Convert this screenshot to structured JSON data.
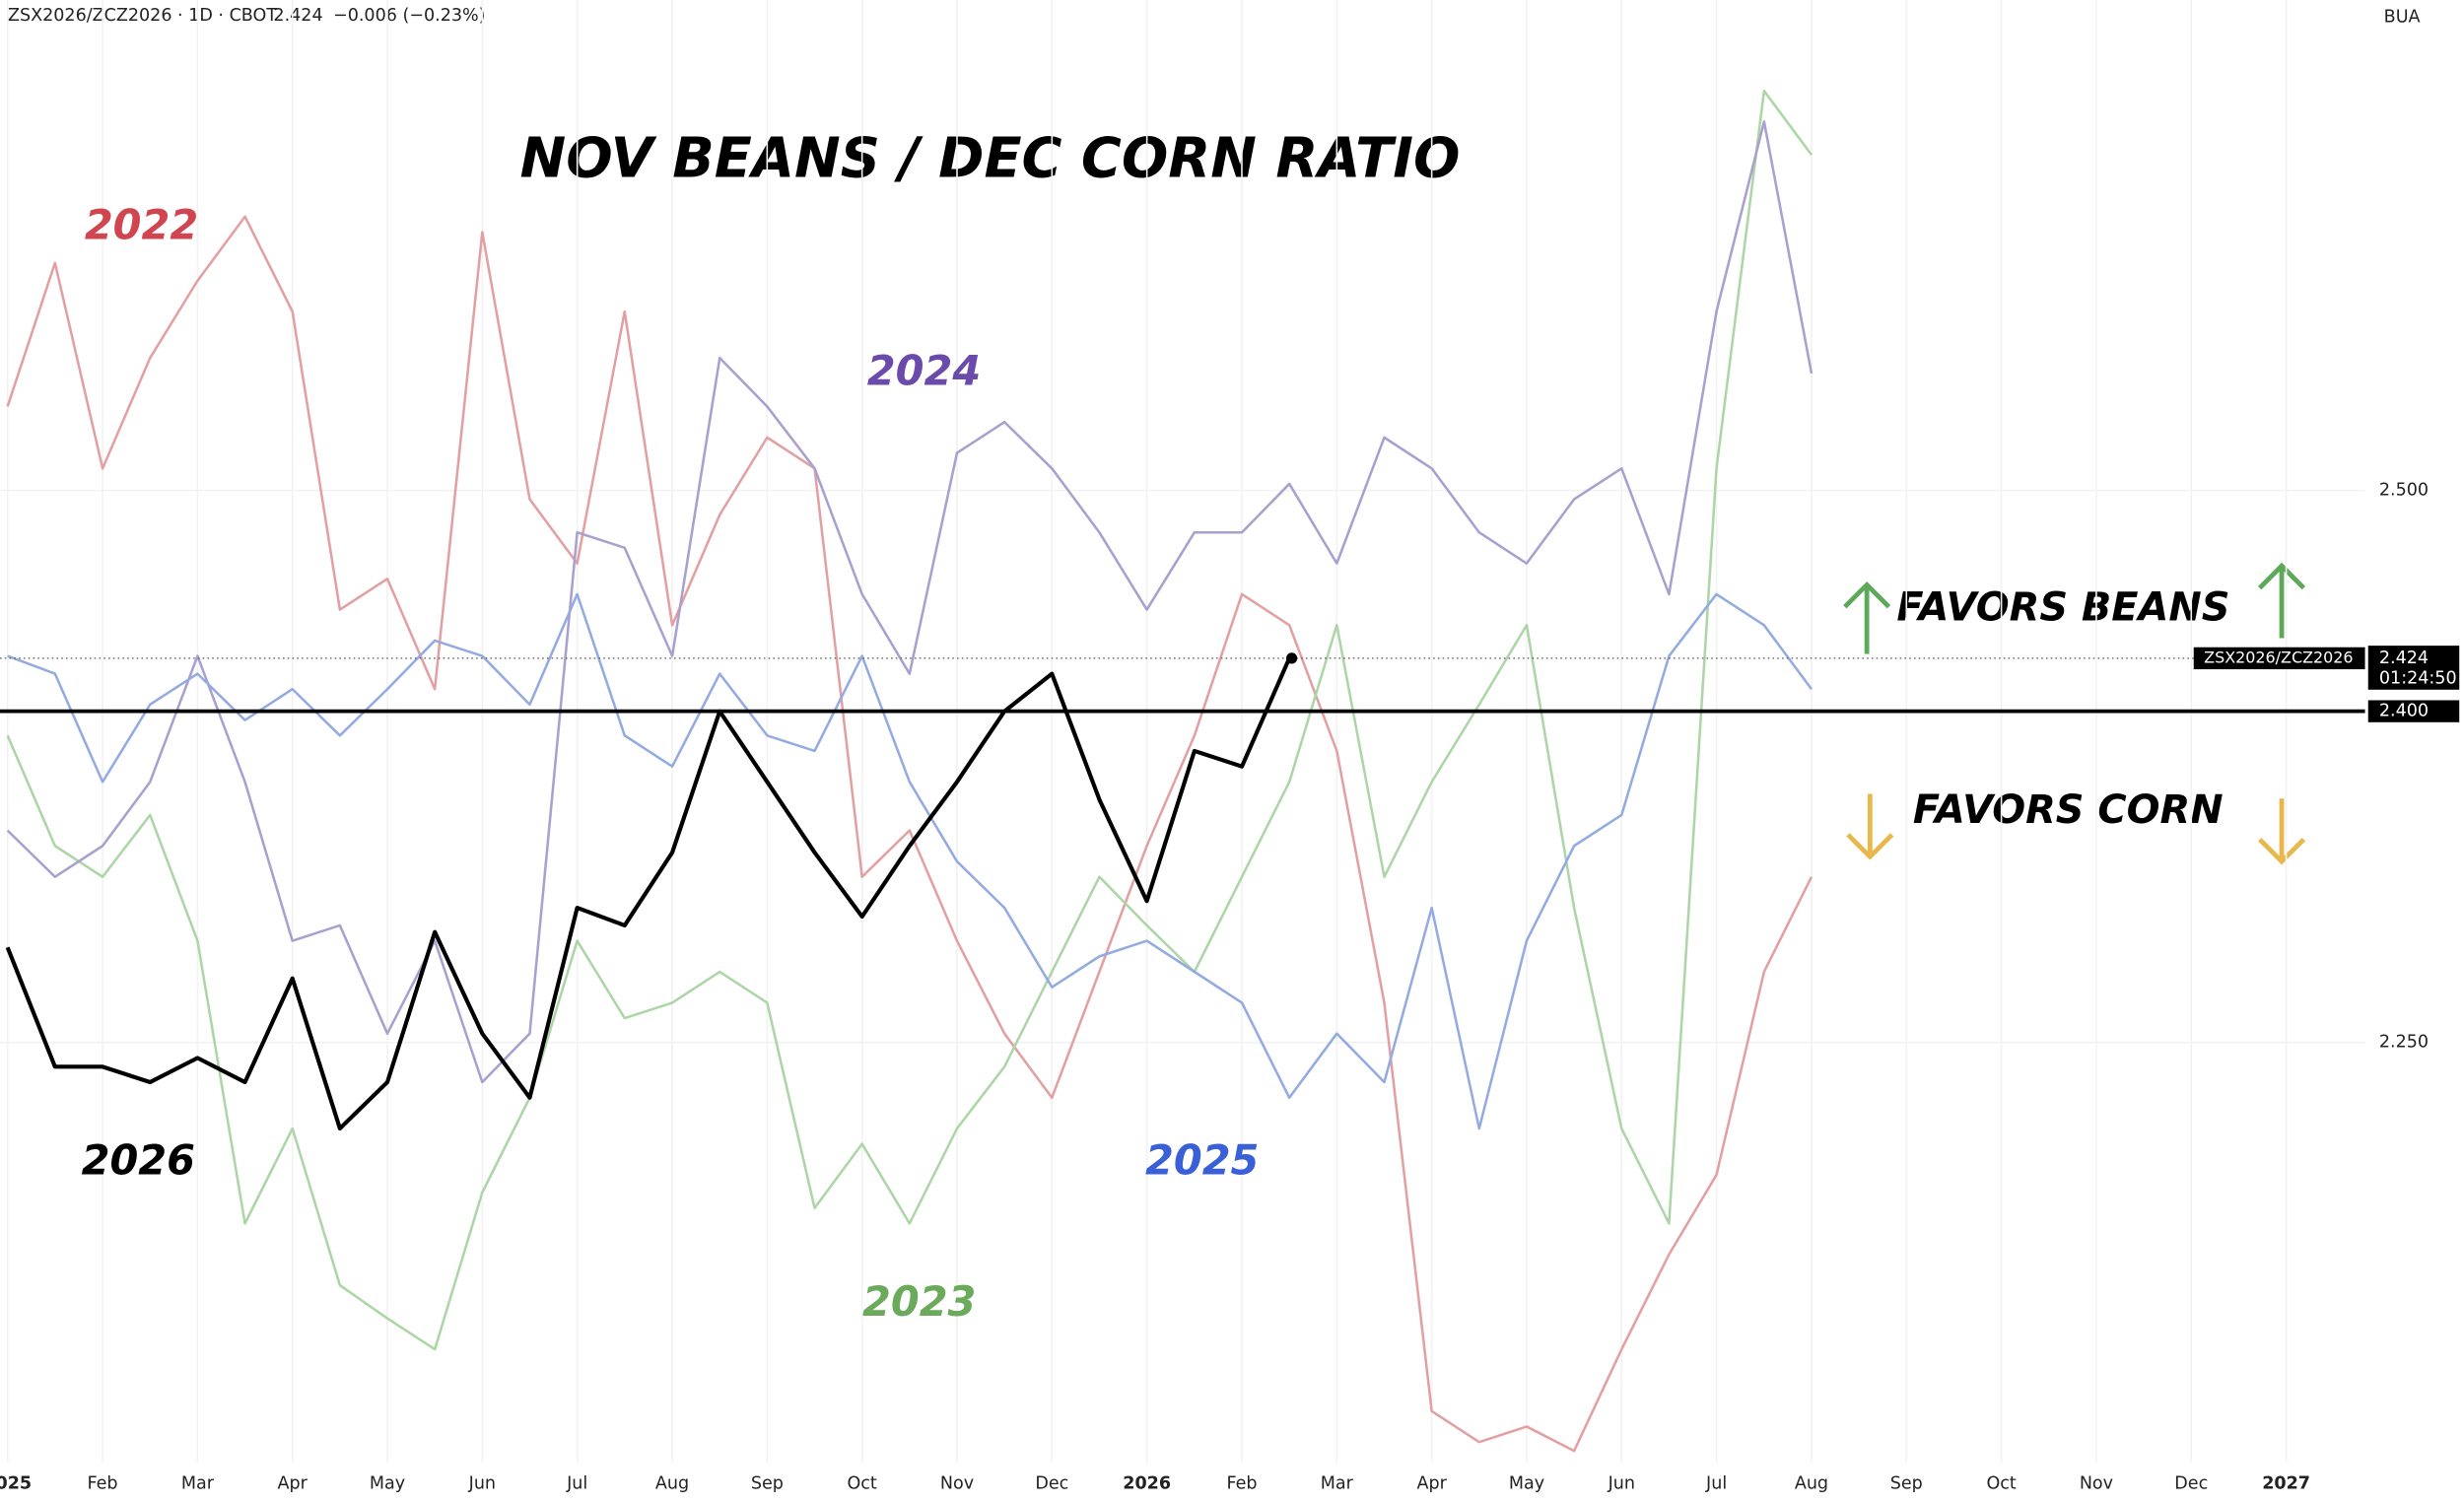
{
  "chart_data": {
    "type": "line",
    "title": "NOV BEANS / DEC CORN RATIO",
    "header": {
      "symbol": "ZSX2026/ZCZ2026 · 1D · CBOT",
      "last": "2.424",
      "change": "−0.006 (−0.23%)"
    },
    "corner_text": "BUA",
    "annotations": [
      "FAVORS BEANS",
      "FAVORS CORN"
    ],
    "hline": {
      "value": 2.4,
      "label": "2.400"
    },
    "last_price": {
      "symbol": "ZSX2026/ZCZ2026",
      "value": 2.424,
      "countdown": "01:24:50"
    },
    "grid": true,
    "xlim": [
      -0.08,
      24.83
    ],
    "xticks": [
      {
        "value": 0,
        "label": "2025"
      },
      {
        "value": 1,
        "label": "Feb"
      },
      {
        "value": 2,
        "label": "Mar"
      },
      {
        "value": 3,
        "label": "Apr"
      },
      {
        "value": 4,
        "label": "May"
      },
      {
        "value": 5,
        "label": "Jun"
      },
      {
        "value": 6,
        "label": "Jul"
      },
      {
        "value": 7,
        "label": "Aug"
      },
      {
        "value": 8,
        "label": "Sep"
      },
      {
        "value": 9,
        "label": "Oct"
      },
      {
        "value": 10,
        "label": "Nov"
      },
      {
        "value": 11,
        "label": "Dec"
      },
      {
        "value": 12,
        "label": "2026"
      },
      {
        "value": 13,
        "label": "Feb"
      },
      {
        "value": 14,
        "label": "Mar"
      },
      {
        "value": 15,
        "label": "Apr"
      },
      {
        "value": 16,
        "label": "May"
      },
      {
        "value": 17,
        "label": "Jun"
      },
      {
        "value": 18,
        "label": "Jul"
      },
      {
        "value": 19,
        "label": "Aug"
      },
      {
        "value": 20,
        "label": "Sep"
      },
      {
        "value": 21,
        "label": "Oct"
      },
      {
        "value": 22,
        "label": "Nov"
      },
      {
        "value": 23,
        "label": "Dec"
      },
      {
        "value": 24,
        "label": "2027"
      }
    ],
    "ylim": [
      2.06,
      2.72
    ],
    "yticks": [
      {
        "value": 2.25,
        "label": "2.250"
      },
      {
        "value": 2.5,
        "label": "2.500"
      }
    ],
    "x": [
      0,
      0.5,
      1,
      1.5,
      2,
      2.5,
      3,
      3.5,
      4,
      4.5,
      5,
      5.5,
      6,
      6.5,
      7,
      7.5,
      8,
      8.5,
      9,
      9.5,
      10,
      10.5,
      11,
      11.5,
      12,
      12.5,
      13,
      13.5,
      14,
      14.5,
      15,
      15.5,
      16,
      16.5,
      17,
      17.5,
      18,
      18.5,
      19
    ],
    "series": [
      {
        "name": "2022",
        "color": "#e3a0a3",
        "label_color": "#d0454f",
        "values": [
          2.538,
          2.603,
          2.51,
          2.56,
          2.595,
          2.624,
          2.581,
          2.446,
          2.46,
          2.41,
          2.617,
          2.496,
          2.467,
          2.581,
          2.439,
          2.489,
          2.524,
          2.51,
          2.325,
          2.346,
          2.296,
          2.254,
          2.225,
          2.282,
          2.339,
          2.389,
          2.453,
          2.439,
          2.382,
          2.268,
          2.083,
          2.069,
          2.076,
          2.065,
          2.111,
          2.154,
          2.19,
          2.282,
          2.325
        ]
      },
      {
        "name": "2023",
        "color": "#acd6a6",
        "label_color": "#6aaa5a",
        "values": [
          2.389,
          2.339,
          2.325,
          2.353,
          2.296,
          2.168,
          2.211,
          2.14,
          2.125,
          2.111,
          2.182,
          2.225,
          2.296,
          2.261,
          2.268,
          2.282,
          2.268,
          2.175,
          2.204,
          2.168,
          2.211,
          2.239,
          2.282,
          2.325,
          2.303,
          2.282,
          2.325,
          2.368,
          2.439,
          2.325,
          2.368,
          2.403,
          2.439,
          2.311,
          2.211,
          2.168,
          2.51,
          2.681,
          2.652
        ]
      },
      {
        "name": "2024",
        "color": "#aaa0cf",
        "label_color": "#6a4aaa",
        "values": [
          2.346,
          2.325,
          2.339,
          2.368,
          2.425,
          2.368,
          2.296,
          2.303,
          2.254,
          2.296,
          2.232,
          2.254,
          2.481,
          2.474,
          2.425,
          2.56,
          2.538,
          2.51,
          2.453,
          2.417,
          2.517,
          2.531,
          2.51,
          2.481,
          2.446,
          2.481,
          2.481,
          2.503,
          2.467,
          2.524,
          2.51,
          2.481,
          2.467,
          2.496,
          2.51,
          2.453,
          2.581,
          2.667,
          2.553
        ]
      },
      {
        "name": "2025",
        "color": "#94abe2",
        "label_color": "#3a60d8",
        "values": [
          2.425,
          2.417,
          2.368,
          2.403,
          2.417,
          2.396,
          2.41,
          2.389,
          2.41,
          2.432,
          2.425,
          2.403,
          2.453,
          2.389,
          2.375,
          2.417,
          2.389,
          2.382,
          2.425,
          2.368,
          2.332,
          2.311,
          2.275,
          2.289,
          2.296,
          2.282,
          2.268,
          2.225,
          2.254,
          2.232,
          2.311,
          2.211,
          2.296,
          2.339,
          2.353,
          2.425,
          2.453,
          2.439,
          2.41
        ]
      },
      {
        "name": "2026",
        "color": "#000000",
        "label_color": "#000000",
        "values": [
          2.293,
          2.239,
          2.239,
          2.232,
          2.243,
          2.232,
          2.279,
          2.211,
          2.232,
          2.3,
          2.254,
          2.225,
          2.311,
          2.303,
          2.336,
          2.4,
          2.368,
          2.336,
          2.307,
          2.339,
          2.368,
          2.4,
          2.417,
          2.36,
          2.314,
          2.382,
          2.375,
          2.424,
          null,
          null,
          null,
          null,
          null,
          null,
          null,
          null,
          null,
          null,
          null
        ]
      }
    ]
  }
}
